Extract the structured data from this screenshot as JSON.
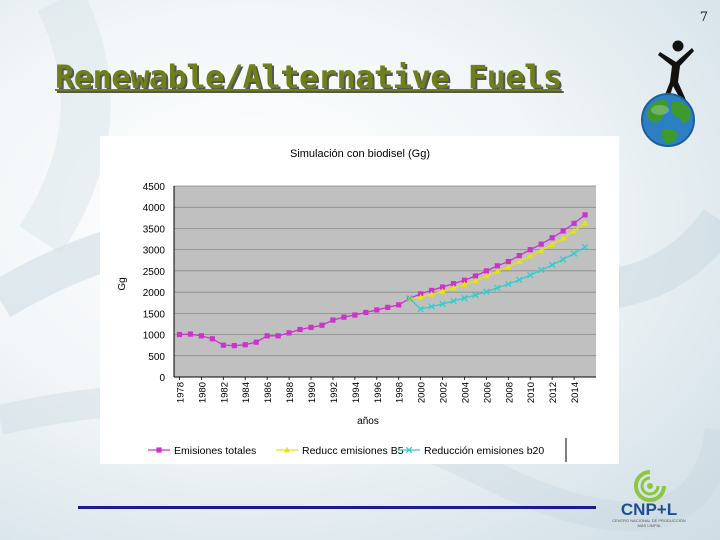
{
  "slide": {
    "number": "7",
    "title": "Renewable/Alternative Fuels"
  },
  "branding": {
    "logo_text": "CNP+L",
    "logo_subtext": "CENTRO NACIONAL DE PRODUCCIÓN MÁS LIMPIA",
    "colors": {
      "title": "#6f7f19",
      "rule": "#1c1b8c",
      "logo": "#1d4e91",
      "globe_green": "#3e9a2c",
      "globe_blue": "#2d7fc4"
    },
    "icons": [
      "person-figure-icon",
      "globe-icon",
      "cnp-leaf-icon"
    ]
  },
  "chart_data": {
    "type": "line",
    "title": "Simulación con biodisel (Gg)",
    "xlabel": "años",
    "ylabel": "Gg",
    "ylim": [
      0,
      4500
    ],
    "yticks": [
      "4500",
      "4000",
      "3500",
      "3000",
      "2500",
      "2000",
      "1500",
      "1000",
      "500",
      "0"
    ],
    "xtick_labels": [
      "1978",
      "1980",
      "1982",
      "1984",
      "1986",
      "1988",
      "1990",
      "1992",
      "1994",
      "1996",
      "1998",
      "2000",
      "2002",
      "2004",
      "2006",
      "2008",
      "2010",
      "2012",
      "2014"
    ],
    "grid": true,
    "legend_position": "bottom",
    "series": [
      {
        "name": "Emisiones totales",
        "color": "#cc33cc",
        "marker": "square",
        "x": [
          1978,
          1979,
          1980,
          1981,
          1982,
          1983,
          1984,
          1985,
          1986,
          1987,
          1988,
          1989,
          1990,
          1991,
          1992,
          1993,
          1994,
          1995,
          1996,
          1997,
          1998,
          1999,
          2000,
          2001,
          2002,
          2003,
          2004,
          2005,
          2006,
          2007,
          2008,
          2009,
          2010,
          2011,
          2012,
          2013,
          2014,
          2015
        ],
        "values": [
          1000,
          1010,
          970,
          900,
          750,
          740,
          760,
          820,
          970,
          970,
          1040,
          1120,
          1170,
          1220,
          1340,
          1410,
          1460,
          1520,
          1580,
          1640,
          1700,
          1850,
          1960,
          2040,
          2120,
          2200,
          2280,
          2380,
          2500,
          2620,
          2720,
          2860,
          3000,
          3130,
          3280,
          3440,
          3620,
          3820
        ]
      },
      {
        "name": "Reducc emisiones B5",
        "color": "#e6e600",
        "marker": "triangle",
        "x": [
          1999,
          2000,
          2001,
          2002,
          2003,
          2004,
          2005,
          2006,
          2007,
          2008,
          2009,
          2010,
          2011,
          2012,
          2013,
          2014,
          2015
        ],
        "values": [
          1850,
          1880,
          1950,
          2020,
          2100,
          2180,
          2270,
          2380,
          2490,
          2590,
          2720,
          2850,
          2980,
          3120,
          3270,
          3440,
          3630
        ]
      },
      {
        "name": "Reducción emisiones b20",
        "color": "#33cccc",
        "marker": "x",
        "x": [
          1999,
          2000,
          2001,
          2002,
          2003,
          2004,
          2005,
          2006,
          2007,
          2008,
          2009,
          2010,
          2011,
          2012,
          2013,
          2014,
          2015
        ],
        "values": [
          1850,
          1600,
          1660,
          1720,
          1790,
          1860,
          1930,
          2010,
          2100,
          2190,
          2290,
          2400,
          2520,
          2640,
          2770,
          2910,
          3060
        ]
      }
    ]
  }
}
